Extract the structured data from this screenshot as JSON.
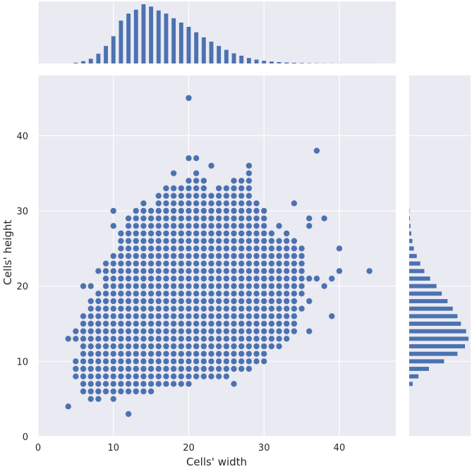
{
  "chart_data": {
    "type": "scatter",
    "title": "",
    "xlabel": "Cells' width",
    "ylabel": "Cells' height",
    "xlim": [
      0,
      47.5
    ],
    "ylim": [
      0,
      48
    ],
    "x_ticks": [
      0,
      10,
      20,
      30,
      40
    ],
    "y_ticks": [
      0,
      10,
      20,
      30,
      40
    ],
    "grid": true,
    "point_color": "#4c72b0",
    "bar_color": "#4c72b0",
    "background_color": "#eaeaf2",
    "grid_color": "#ffffff",
    "columns": [
      {
        "x": 4,
        "ys": [
          4,
          13
        ]
      },
      {
        "x": 5,
        "ys": [
          8,
          9,
          10,
          13,
          14
        ]
      },
      {
        "x": 6,
        "ys": [
          6,
          7,
          8,
          9,
          10,
          11,
          12,
          13,
          14,
          15,
          16,
          20
        ]
      },
      {
        "x": 7,
        "ys": [
          5,
          6,
          7,
          8,
          9,
          10,
          11,
          12,
          13,
          14,
          15,
          16,
          17,
          18,
          20
        ]
      },
      {
        "x": 8,
        "ys": [
          5,
          6,
          7,
          8,
          9,
          10,
          11,
          12,
          13,
          14,
          15,
          16,
          17,
          18,
          19,
          22
        ]
      },
      {
        "x": 9,
        "ys": [
          6,
          7,
          8,
          9,
          10,
          11,
          12,
          13,
          14,
          15,
          16,
          17,
          18,
          19,
          20,
          21,
          22,
          23
        ]
      },
      {
        "x": 10,
        "ys": [
          5,
          6,
          7,
          8,
          9,
          10,
          11,
          12,
          13,
          14,
          15,
          16,
          17,
          18,
          19,
          20,
          21,
          22,
          23,
          24,
          28,
          30
        ]
      },
      {
        "x": 11,
        "ys": [
          6,
          7,
          8,
          9,
          10,
          11,
          12,
          13,
          14,
          15,
          16,
          17,
          18,
          19,
          20,
          21,
          22,
          23,
          24,
          25,
          26,
          27
        ]
      },
      {
        "x": 12,
        "ys": [
          3,
          6,
          7,
          8,
          9,
          10,
          11,
          12,
          13,
          14,
          15,
          16,
          17,
          18,
          19,
          20,
          21,
          22,
          23,
          24,
          25,
          26,
          27,
          28,
          29
        ]
      },
      {
        "x": 13,
        "ys": [
          6,
          7,
          8,
          9,
          10,
          11,
          12,
          13,
          14,
          15,
          16,
          17,
          18,
          19,
          20,
          21,
          22,
          23,
          24,
          25,
          26,
          27,
          28,
          29,
          30
        ]
      },
      {
        "x": 14,
        "ys": [
          6,
          7,
          8,
          9,
          10,
          11,
          12,
          13,
          14,
          15,
          16,
          17,
          18,
          19,
          20,
          21,
          22,
          23,
          24,
          25,
          26,
          27,
          28,
          29,
          30,
          31
        ]
      },
      {
        "x": 15,
        "ys": [
          6,
          7,
          8,
          9,
          10,
          11,
          12,
          13,
          14,
          15,
          16,
          17,
          18,
          19,
          20,
          21,
          22,
          23,
          24,
          25,
          26,
          27,
          28,
          29,
          30
        ]
      },
      {
        "x": 16,
        "ys": [
          7,
          8,
          9,
          10,
          11,
          12,
          13,
          14,
          15,
          16,
          17,
          18,
          19,
          20,
          21,
          22,
          23,
          24,
          25,
          26,
          27,
          28,
          29,
          30,
          31,
          32
        ]
      },
      {
        "x": 17,
        "ys": [
          7,
          8,
          9,
          10,
          11,
          12,
          13,
          14,
          15,
          16,
          17,
          18,
          19,
          20,
          21,
          22,
          23,
          24,
          25,
          26,
          27,
          28,
          29,
          30,
          31,
          32,
          33
        ]
      },
      {
        "x": 18,
        "ys": [
          7,
          8,
          9,
          10,
          11,
          12,
          13,
          14,
          15,
          16,
          17,
          18,
          19,
          20,
          21,
          22,
          23,
          24,
          25,
          26,
          27,
          28,
          29,
          30,
          31,
          32,
          33,
          35
        ]
      },
      {
        "x": 19,
        "ys": [
          7,
          8,
          9,
          10,
          11,
          12,
          13,
          14,
          15,
          16,
          17,
          18,
          19,
          20,
          21,
          22,
          23,
          24,
          25,
          26,
          27,
          28,
          29,
          30,
          31,
          32,
          33
        ]
      },
      {
        "x": 20,
        "ys": [
          7,
          8,
          9,
          10,
          11,
          12,
          13,
          14,
          15,
          16,
          17,
          18,
          19,
          20,
          21,
          22,
          23,
          24,
          25,
          26,
          27,
          28,
          29,
          30,
          31,
          32,
          33,
          34,
          37,
          45
        ]
      },
      {
        "x": 21,
        "ys": [
          8,
          9,
          10,
          11,
          12,
          13,
          14,
          15,
          16,
          17,
          18,
          19,
          20,
          21,
          22,
          23,
          24,
          25,
          26,
          27,
          28,
          29,
          30,
          31,
          32,
          33,
          34,
          35,
          37
        ]
      },
      {
        "x": 22,
        "ys": [
          8,
          9,
          10,
          11,
          12,
          13,
          14,
          15,
          16,
          17,
          18,
          19,
          20,
          21,
          22,
          23,
          24,
          25,
          26,
          27,
          28,
          29,
          30,
          31,
          32,
          33,
          34
        ]
      },
      {
        "x": 23,
        "ys": [
          8,
          9,
          10,
          11,
          12,
          13,
          14,
          15,
          16,
          17,
          18,
          19,
          20,
          21,
          22,
          23,
          24,
          25,
          26,
          27,
          28,
          29,
          30,
          31,
          32,
          36
        ]
      },
      {
        "x": 24,
        "ys": [
          8,
          9,
          10,
          11,
          12,
          13,
          14,
          15,
          16,
          17,
          18,
          19,
          20,
          21,
          22,
          23,
          24,
          25,
          26,
          27,
          28,
          29,
          30,
          31,
          32,
          33
        ]
      },
      {
        "x": 25,
        "ys": [
          8,
          9,
          10,
          11,
          12,
          13,
          14,
          15,
          16,
          17,
          18,
          19,
          20,
          21,
          22,
          23,
          24,
          25,
          26,
          27,
          28,
          29,
          30,
          31,
          32,
          33
        ]
      },
      {
        "x": 26,
        "ys": [
          7,
          9,
          10,
          11,
          12,
          13,
          14,
          15,
          16,
          17,
          18,
          19,
          20,
          21,
          22,
          23,
          24,
          25,
          26,
          27,
          28,
          29,
          30,
          31,
          32,
          33,
          34
        ]
      },
      {
        "x": 27,
        "ys": [
          9,
          10,
          11,
          12,
          13,
          14,
          15,
          16,
          17,
          18,
          19,
          20,
          21,
          22,
          23,
          24,
          25,
          26,
          27,
          28,
          29,
          30,
          31,
          32,
          33,
          34
        ]
      },
      {
        "x": 28,
        "ys": [
          9,
          10,
          11,
          12,
          13,
          14,
          15,
          16,
          17,
          18,
          19,
          20,
          21,
          22,
          23,
          24,
          25,
          26,
          27,
          28,
          29,
          30,
          31,
          32,
          33,
          34,
          35,
          36
        ]
      },
      {
        "x": 29,
        "ys": [
          10,
          11,
          12,
          13,
          14,
          15,
          16,
          17,
          18,
          19,
          20,
          21,
          22,
          23,
          24,
          25,
          26,
          27,
          28,
          29,
          30,
          31
        ]
      },
      {
        "x": 30,
        "ys": [
          10,
          11,
          12,
          13,
          14,
          15,
          16,
          17,
          18,
          19,
          20,
          21,
          22,
          23,
          24,
          25,
          26,
          27,
          28,
          29,
          30
        ]
      },
      {
        "x": 31,
        "ys": [
          12,
          13,
          14,
          15,
          16,
          17,
          18,
          19,
          20,
          21,
          22,
          23,
          24,
          25,
          26,
          27
        ]
      },
      {
        "x": 32,
        "ys": [
          12,
          13,
          14,
          15,
          16,
          17,
          18,
          19,
          20,
          21,
          22,
          23,
          24,
          25,
          26,
          28
        ]
      },
      {
        "x": 33,
        "ys": [
          13,
          14,
          15,
          16,
          17,
          18,
          19,
          20,
          21,
          22,
          23,
          24,
          25,
          26,
          27
        ]
      },
      {
        "x": 34,
        "ys": [
          14,
          15,
          16,
          17,
          18,
          19,
          20,
          21,
          22,
          23,
          24,
          25,
          26,
          31
        ]
      },
      {
        "x": 35,
        "ys": [
          17,
          19,
          20,
          21,
          22,
          23,
          24,
          25
        ]
      },
      {
        "x": 36,
        "ys": [
          14,
          18,
          21,
          28,
          29
        ]
      },
      {
        "x": 37,
        "ys": [
          21,
          38
        ]
      },
      {
        "x": 38,
        "ys": [
          20,
          29
        ]
      },
      {
        "x": 39,
        "ys": [
          16,
          21
        ]
      },
      {
        "x": 40,
        "ys": [
          22,
          25
        ]
      },
      {
        "x": 44,
        "ys": [
          22
        ]
      }
    ],
    "marginal_x": {
      "bins": [
        5,
        6,
        7,
        8,
        9,
        10,
        11,
        12,
        13,
        14,
        15,
        16,
        17,
        18,
        19,
        20,
        21,
        22,
        23,
        24,
        25,
        26,
        27,
        28,
        29,
        30,
        31,
        32,
        33,
        34,
        35,
        36,
        37,
        38,
        39,
        40,
        41,
        42,
        43,
        44
      ],
      "counts": [
        0.2,
        0.6,
        1.2,
        2.5,
        4.5,
        7.0,
        11.0,
        12.8,
        13.8,
        15.2,
        14.6,
        13.6,
        12.8,
        11.6,
        10.5,
        9.4,
        8.0,
        6.7,
        5.6,
        4.5,
        3.5,
        2.6,
        2.0,
        1.4,
        1.0,
        0.7,
        0.5,
        0.35,
        0.25,
        0.18,
        0.12,
        0.08,
        0.06,
        0.04,
        0.03,
        0.02,
        0.01,
        0.01,
        0.01,
        0.01
      ]
    },
    "marginal_y": {
      "bins": [
        7,
        8,
        9,
        10,
        11,
        12,
        13,
        14,
        15,
        16,
        17,
        18,
        19,
        20,
        21,
        22,
        23,
        24,
        25,
        26,
        27,
        28,
        29,
        30
      ],
      "counts": [
        0.6,
        1.6,
        3.4,
        6.0,
        8.3,
        9.6,
        10.2,
        9.8,
        8.9,
        8.3,
        7.5,
        6.6,
        5.6,
        4.7,
        3.6,
        2.6,
        1.9,
        1.3,
        0.8,
        0.55,
        0.35,
        0.22,
        0.12,
        0.06
      ]
    }
  }
}
